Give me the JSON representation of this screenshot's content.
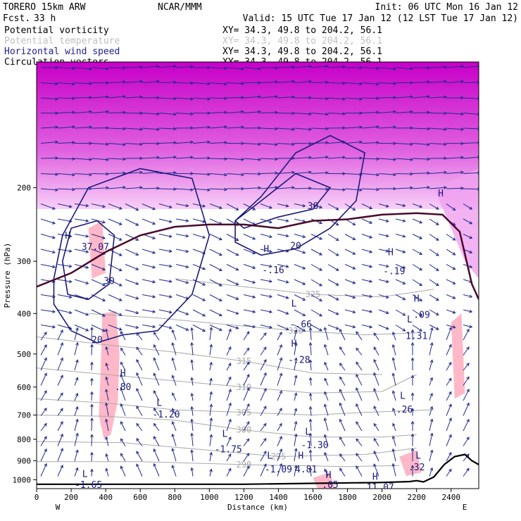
{
  "header": {
    "model": "TORERO  15km ARW",
    "org": "NCAR/MMM",
    "init": "Init: 06 UTC Mon 16 Jan 12",
    "fcst_label": "Fcst.",
    "fcst_value": "33 h",
    "valid": "Valid: 15 UTC Tue 17 Jan 12 (12 LST Tue 17 Jan 12)",
    "fields": [
      {
        "name": "Potential vorticity",
        "xy": "XY=  34.3, 49.8 to 204.2, 56.1",
        "color": "#000000"
      },
      {
        "name": "Potential temperature",
        "xy": "XY=  34.3, 49.8 to 204.2, 56.1",
        "color": "#c8c8c8"
      },
      {
        "name": "Horizontal wind speed",
        "xy": "XY=  34.3, 49.8 to 204.2, 56.1",
        "color": "#1e1e8c"
      },
      {
        "name": "Circulation vectors",
        "xy": "XY=  34.3, 49.8 to 204.2, 56.1",
        "color": "#000000"
      }
    ]
  },
  "chart_data": {
    "type": "cross-section",
    "xlabel": "Distance (km)",
    "ylabel": "Pressure (hPa)",
    "x_ticks": [
      0,
      200,
      400,
      600,
      800,
      1000,
      1200,
      1400,
      1600,
      1800,
      2000,
      2200,
      2400
    ],
    "y_ticks": [
      200,
      300,
      400,
      500,
      600,
      700,
      800,
      900,
      1000
    ],
    "xlim": [
      0,
      2560
    ],
    "ylim": [
      1050,
      100
    ],
    "y_scale": "log",
    "left_end_label": "W",
    "right_end_label": "E",
    "colors": {
      "pv_fill": "#ffb8c8",
      "pv_high": "#d000d0",
      "tropopause_line": "#4a0a2a",
      "theta": "#a9a9a9",
      "wind": "#1a1a7a",
      "vectors": "#1e2a8c",
      "terrain": "#000000"
    },
    "theta_contours": [
      {
        "label": "300",
        "points": [
          [
            0,
            700
          ],
          [
            400,
            705
          ],
          [
            800,
            720
          ],
          [
            1200,
            760
          ],
          [
            1600,
            790
          ],
          [
            2000,
            790
          ],
          [
            2200,
            780
          ]
        ]
      },
      {
        "label": "305",
        "points": [
          [
            0,
            640
          ],
          [
            400,
            655
          ],
          [
            800,
            680
          ],
          [
            1200,
            690
          ],
          [
            1600,
            700
          ],
          [
            1900,
            690
          ],
          [
            2300,
            680
          ]
        ]
      },
      {
        "label": "310",
        "points": [
          [
            0,
            540
          ],
          [
            400,
            560
          ],
          [
            800,
            580
          ],
          [
            1200,
            600
          ],
          [
            1600,
            620
          ],
          [
            2000,
            615
          ],
          [
            2200,
            560
          ]
        ]
      },
      {
        "label": "315",
        "points": [
          [
            0,
            455
          ],
          [
            400,
            475
          ],
          [
            800,
            495
          ],
          [
            1200,
            520
          ],
          [
            1600,
            555
          ],
          [
            2000,
            560
          ]
        ]
      },
      {
        "label": "320",
        "points": [
          [
            300,
            400
          ],
          [
            700,
            410
          ],
          [
            1100,
            425
          ],
          [
            1500,
            440
          ],
          [
            1900,
            450
          ],
          [
            2200,
            445
          ]
        ]
      },
      {
        "label": "325",
        "points": [
          [
            800,
            330
          ],
          [
            1200,
            345
          ],
          [
            1600,
            360
          ],
          [
            2000,
            365
          ],
          [
            2300,
            350
          ]
        ]
      },
      {
        "label": "290",
        "points": [
          [
            0,
            905
          ],
          [
            600,
            905
          ],
          [
            1200,
            920
          ],
          [
            1800,
            930
          ],
          [
            2100,
            925
          ]
        ]
      },
      {
        "label": "295",
        "points": [
          [
            0,
            810
          ],
          [
            500,
            815
          ],
          [
            1000,
            850
          ],
          [
            1400,
            880
          ],
          [
            1900,
            870
          ],
          [
            2200,
            840
          ]
        ]
      }
    ],
    "wind_contours": [
      {
        "label": "20",
        "points": [
          [
            100,
            330
          ],
          [
            150,
            260
          ],
          [
            300,
            200
          ],
          [
            600,
            180
          ],
          [
            900,
            190
          ],
          [
            1000,
            260
          ],
          [
            900,
            360
          ],
          [
            700,
            440
          ],
          [
            500,
            450
          ],
          [
            350,
            470
          ],
          [
            200,
            440
          ],
          [
            100,
            380
          ]
        ]
      },
      {
        "label": "30",
        "points": [
          [
            150,
            300
          ],
          [
            200,
            250
          ],
          [
            350,
            240
          ],
          [
            450,
            260
          ],
          [
            420,
            340
          ],
          [
            300,
            370
          ],
          [
            180,
            360
          ]
        ]
      },
      {
        "label": "20",
        "points": [
          [
            1150,
            240
          ],
          [
            1300,
            210
          ],
          [
            1500,
            165
          ],
          [
            1700,
            150
          ],
          [
            1900,
            165
          ],
          [
            1850,
            215
          ],
          [
            1700,
            250
          ],
          [
            1500,
            280
          ],
          [
            1300,
            290
          ],
          [
            1150,
            270
          ]
        ]
      },
      {
        "label": "30",
        "points": [
          [
            1150,
            240
          ],
          [
            1300,
            215
          ],
          [
            1500,
            185
          ],
          [
            1700,
            200
          ],
          [
            1600,
            225
          ],
          [
            1400,
            235
          ],
          [
            1200,
            250
          ]
        ]
      }
    ],
    "tropopause": [
      [
        0,
        345
      ],
      [
        200,
        320
      ],
      [
        400,
        285
      ],
      [
        600,
        260
      ],
      [
        800,
        248
      ],
      [
        1000,
        245
      ],
      [
        1200,
        245
      ],
      [
        1400,
        250
      ],
      [
        1600,
        240
      ],
      [
        1800,
        238
      ],
      [
        2000,
        232
      ],
      [
        2200,
        230
      ],
      [
        2350,
        232
      ],
      [
        2450,
        255
      ],
      [
        2520,
        340
      ],
      [
        2560,
        370
      ]
    ],
    "terrain": [
      [
        0,
        1025
      ],
      [
        400,
        1025
      ],
      [
        800,
        1025
      ],
      [
        1200,
        1025
      ],
      [
        1600,
        1020
      ],
      [
        2000,
        1015
      ],
      [
        2160,
        1010
      ],
      [
        2200,
        1005
      ],
      [
        2240,
        1012
      ],
      [
        2300,
        985
      ],
      [
        2360,
        920
      ],
      [
        2420,
        880
      ],
      [
        2480,
        870
      ],
      [
        2520,
        900
      ],
      [
        2560,
        920
      ]
    ],
    "annotations": [
      {
        "text": "H",
        "x": 180,
        "y": 265
      },
      {
        "text": "37.07",
        "x": 340,
        "y": 282
      },
      {
        "text": "L",
        "x": 1490,
        "y": 385
      },
      {
        "text": "-.66",
        "x": 1530,
        "y": 432
      },
      {
        "text": "H",
        "x": 1490,
        "y": 480
      },
      {
        "text": "-.28",
        "x": 1520,
        "y": 525
      },
      {
        "text": "H",
        "x": 1330,
        "y": 285
      },
      {
        "text": "-.16",
        "x": 1370,
        "y": 320
      },
      {
        "text": "L",
        "x": 710,
        "y": 665
      },
      {
        "text": "-1.20",
        "x": 750,
        "y": 710
      },
      {
        "text": "H",
        "x": 500,
        "y": 565
      },
      {
        "text": ".80",
        "x": 500,
        "y": 610
      },
      {
        "text": "L",
        "x": 2120,
        "y": 640
      },
      {
        "text": ".26",
        "x": 2130,
        "y": 690
      },
      {
        "text": "L",
        "x": 1570,
        "y": 780
      },
      {
        "text": "-1.30",
        "x": 1610,
        "y": 840
      },
      {
        "text": "L",
        "x": 1090,
        "y": 790
      },
      {
        "text": "-1.75",
        "x": 1110,
        "y": 860
      },
      {
        "text": "L",
        "x": 1350,
        "y": 890
      },
      {
        "text": "-1.09",
        "x": 1400,
        "y": 960
      },
      {
        "text": "H",
        "x": 1530,
        "y": 890
      },
      {
        "text": "4.81",
        "x": 1560,
        "y": 960
      },
      {
        "text": "L",
        "x": 2210,
        "y": 890
      },
      {
        "text": ".32",
        "x": 2200,
        "y": 950
      },
      {
        "text": "L",
        "x": 280,
        "y": 985
      },
      {
        "text": "-1.65",
        "x": 300,
        "y": 1045
      },
      {
        "text": "H",
        "x": 1690,
        "y": 990
      },
      {
        "text": ".05",
        "x": 1700,
        "y": 1045
      },
      {
        "text": "H",
        "x": 1960,
        "y": 1000
      },
      {
        "text": "11.07",
        "x": 1990,
        "y": 1060
      },
      {
        "text": "H",
        "x": 2340,
        "y": 210
      },
      {
        "text": "H",
        "x": 2050,
        "y": 290
      },
      {
        "text": "-.19",
        "x": 2070,
        "y": 322
      },
      {
        "text": "H",
        "x": 2200,
        "y": 375
      },
      {
        "text": ".09",
        "x": 2230,
        "y": 410
      },
      {
        "text": "L",
        "x": 2160,
        "y": 420
      },
      {
        "text": "1.31",
        "x": 2200,
        "y": 460
      }
    ],
    "pv_fill_regions": [
      {
        "points": [
          [
            380,
            400
          ],
          [
            460,
            395
          ],
          [
            480,
            500
          ],
          [
            470,
            650
          ],
          [
            430,
            780
          ],
          [
            390,
            800
          ],
          [
            360,
            700
          ],
          [
            370,
            560
          ]
        ]
      },
      {
        "points": [
          [
            1600,
            990
          ],
          [
            1700,
            960
          ],
          [
            1730,
            1060
          ],
          [
            1640,
            1080
          ]
        ]
      },
      {
        "points": [
          [
            2100,
            880
          ],
          [
            2200,
            850
          ],
          [
            2230,
            960
          ],
          [
            2140,
            980
          ]
        ]
      },
      {
        "points": [
          [
            2400,
            420
          ],
          [
            2460,
            400
          ],
          [
            2480,
            620
          ],
          [
            2420,
            640
          ]
        ]
      },
      {
        "points": [
          [
            300,
            250
          ],
          [
            380,
            240
          ],
          [
            400,
            320
          ],
          [
            320,
            330
          ]
        ]
      }
    ],
    "pv_strong_band": {
      "top": 100,
      "bottom": 225,
      "east_extend": [
        [
          2300,
          200
        ],
        [
          2560,
          180
        ],
        [
          2560,
          330
        ],
        [
          2480,
          300
        ],
        [
          2400,
          250
        ]
      ]
    }
  }
}
